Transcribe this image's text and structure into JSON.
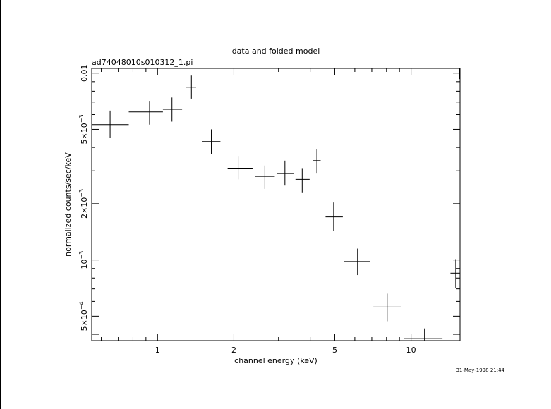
{
  "chart_data": {
    "type": "scatter",
    "title": "data and folded model",
    "subtitle": "ad74048010s010312_1.pi",
    "xlabel": "channel energy (keV)",
    "ylabel": "normalized counts/sec/keV",
    "timestamp": "31-May-1998 21:44",
    "x_scale": "log",
    "y_scale": "log",
    "xlim": [
      0.55,
      15.6
    ],
    "ylim": [
      0.00037,
      0.0106
    ],
    "x_major_ticks": [
      1,
      2,
      5,
      10
    ],
    "x_tick_labels": [
      "1",
      "2",
      "5",
      "10"
    ],
    "y_major_ticks": [
      0.0004,
      0.0005,
      0.001,
      0.002,
      0.005,
      0.01
    ],
    "y_tick_labels": [
      {
        "value": 0.0005,
        "mantissa": "5×10",
        "exp": "−4"
      },
      {
        "value": 0.001,
        "mantissa": "10",
        "exp": "−3"
      },
      {
        "value": 0.002,
        "mantissa": "2×10",
        "exp": "−3"
      },
      {
        "value": 0.005,
        "mantissa": "5×10",
        "exp": "−3"
      },
      {
        "value": 0.01,
        "mantissa": "0.01",
        "exp": ""
      }
    ],
    "points": [
      {
        "x": 0.65,
        "xlo": 0.55,
        "xhi": 0.77,
        "y": 0.0053,
        "ylo": 0.0045,
        "yhi": 0.0063
      },
      {
        "x": 0.93,
        "xlo": 0.77,
        "xhi": 1.05,
        "y": 0.0062,
        "ylo": 0.0053,
        "yhi": 0.0071
      },
      {
        "x": 1.14,
        "xlo": 1.05,
        "xhi": 1.25,
        "y": 0.0064,
        "ylo": 0.0055,
        "yhi": 0.0074
      },
      {
        "x": 1.36,
        "xlo": 1.29,
        "xhi": 1.42,
        "y": 0.0084,
        "ylo": 0.0073,
        "yhi": 0.0097
      },
      {
        "x": 1.63,
        "xlo": 1.5,
        "xhi": 1.77,
        "y": 0.0043,
        "ylo": 0.0037,
        "yhi": 0.005
      },
      {
        "x": 2.08,
        "xlo": 1.89,
        "xhi": 2.37,
        "y": 0.0031,
        "ylo": 0.0027,
        "yhi": 0.0036
      },
      {
        "x": 2.65,
        "xlo": 2.42,
        "xhi": 2.9,
        "y": 0.0028,
        "ylo": 0.0024,
        "yhi": 0.0032
      },
      {
        "x": 3.18,
        "xlo": 2.95,
        "xhi": 3.46,
        "y": 0.0029,
        "ylo": 0.0025,
        "yhi": 0.0034
      },
      {
        "x": 3.72,
        "xlo": 3.5,
        "xhi": 3.98,
        "y": 0.0027,
        "ylo": 0.0023,
        "yhi": 0.0031
      },
      {
        "x": 4.25,
        "xlo": 4.1,
        "xhi": 4.4,
        "y": 0.0034,
        "ylo": 0.0029,
        "yhi": 0.0039
      },
      {
        "x": 4.95,
        "xlo": 4.6,
        "xhi": 5.38,
        "y": 0.0017,
        "ylo": 0.00143,
        "yhi": 0.00203
      },
      {
        "x": 6.15,
        "xlo": 5.45,
        "xhi": 6.9,
        "y": 0.00098,
        "ylo": 0.00083,
        "yhi": 0.00115
      },
      {
        "x": 8.05,
        "xlo": 7.1,
        "xhi": 9.15,
        "y": 0.00056,
        "ylo": 0.00047,
        "yhi": 0.00066
      },
      {
        "x": 11.3,
        "xlo": 9.4,
        "xhi": 13.3,
        "y": 0.00038,
        "ylo": 0.000345,
        "yhi": 0.00043
      },
      {
        "x": 15.0,
        "xlo": 14.3,
        "xhi": 15.7,
        "y": 0.00085,
        "ylo": 0.00071,
        "yhi": 0.00101
      },
      {
        "x": 15.5,
        "xlo": 15.4,
        "xhi": 15.6,
        "y": 0.0102,
        "ylo": 0.0093,
        "yhi": 0.0112
      }
    ]
  }
}
